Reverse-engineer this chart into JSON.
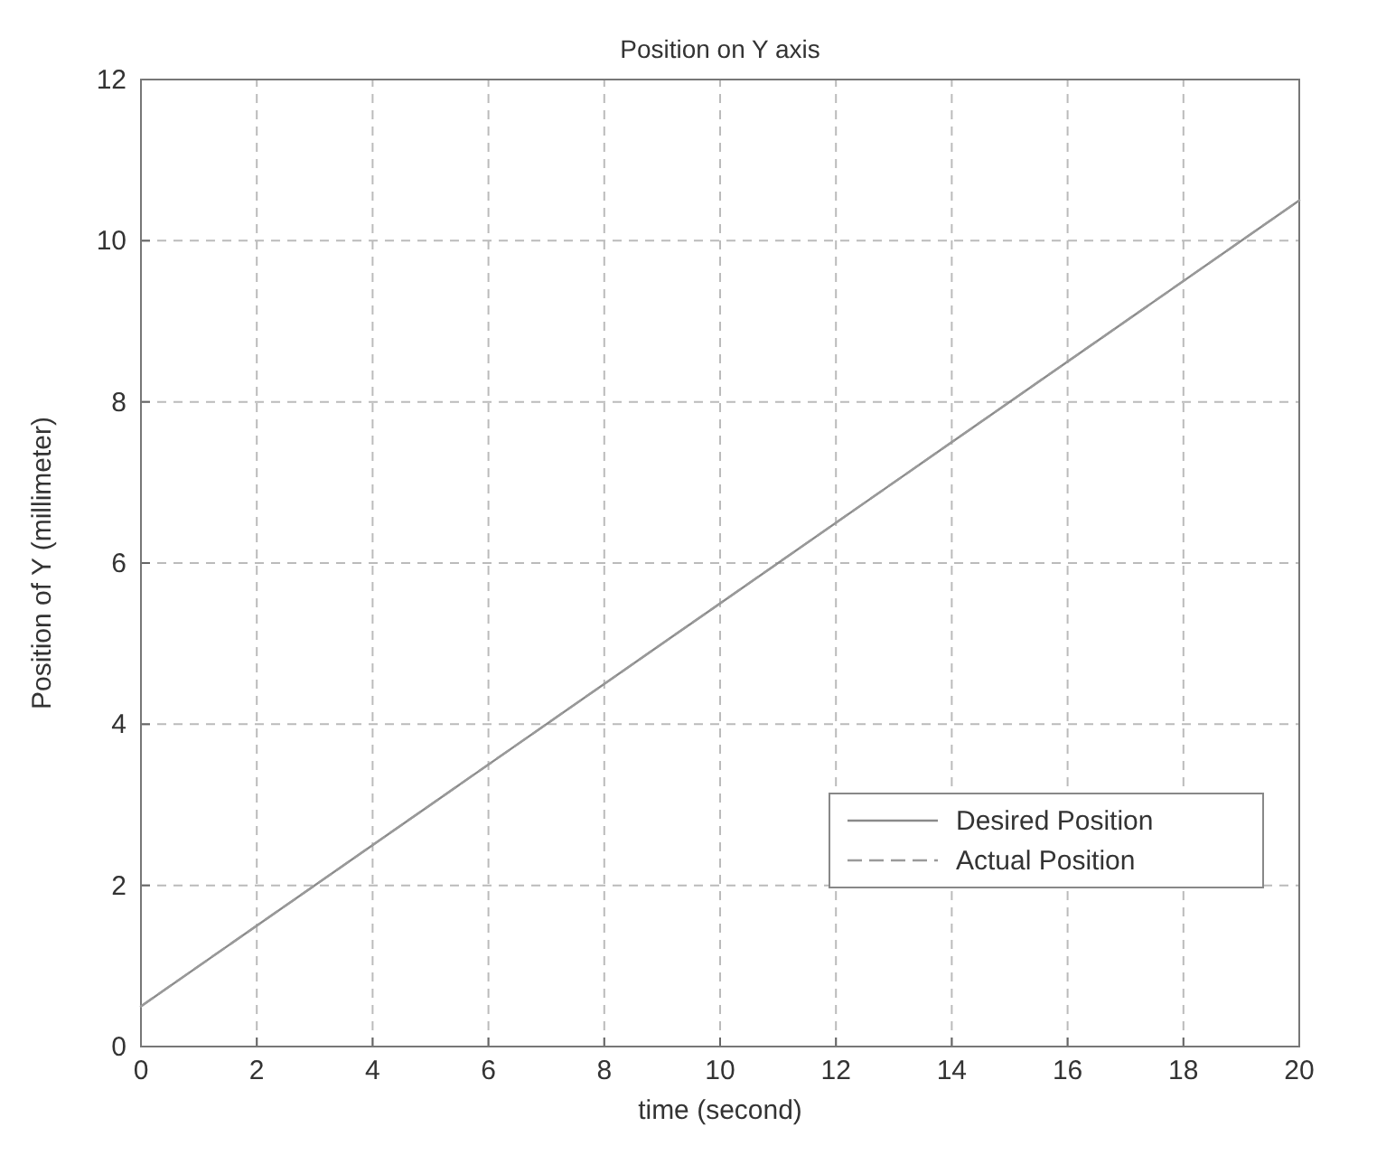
{
  "chart_data": {
    "type": "line",
    "title": "Position on Y axis",
    "xlabel": "time (second)",
    "ylabel": "Position of Y (millimeter)",
    "x": [
      0,
      20
    ],
    "xlim": [
      0,
      20
    ],
    "xticks": [
      0,
      2,
      4,
      6,
      8,
      10,
      12,
      14,
      16,
      18,
      20
    ],
    "ylim": [
      0,
      12
    ],
    "yticks": [
      0,
      2,
      4,
      6,
      8,
      10,
      12
    ],
    "grid": true,
    "legend": "bottom right",
    "series": [
      {
        "name": "Desired Position",
        "color": "#8a8a8a",
        "values": [
          0.5,
          10.5
        ],
        "line_style": "solid"
      },
      {
        "name": "Actual Position",
        "color": "#9a9a9a",
        "values": [
          0.5,
          10.5
        ],
        "line_style": "dashed"
      }
    ]
  }
}
